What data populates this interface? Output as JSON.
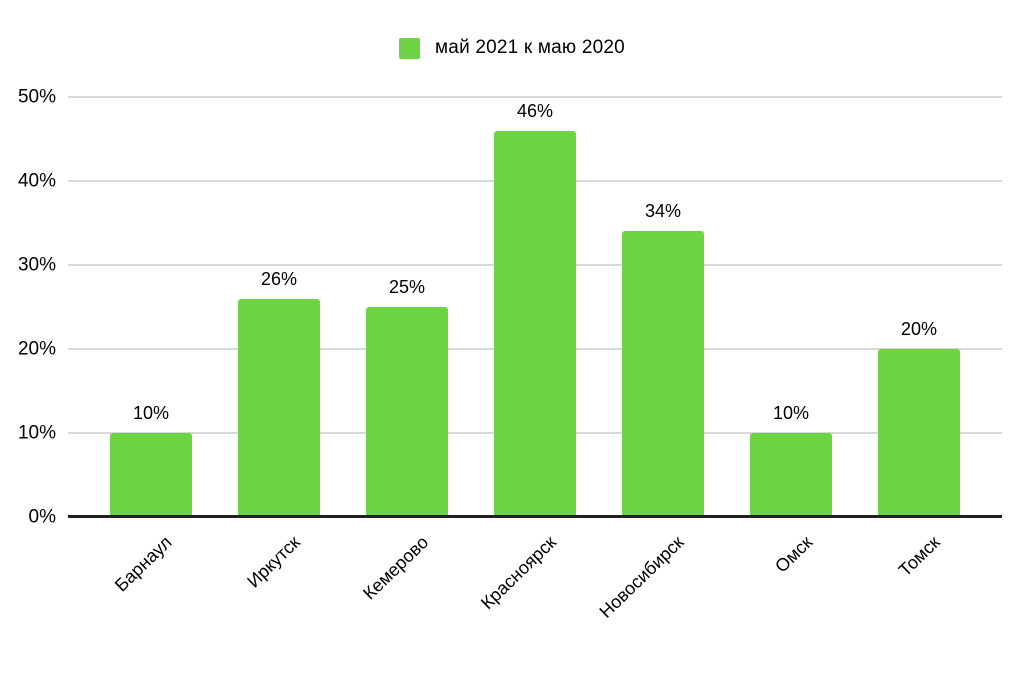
{
  "chart_data": {
    "type": "bar",
    "title": "",
    "xlabel": "",
    "ylabel": "",
    "categories": [
      "Барнаул",
      "Иркутск",
      "Кемерово",
      "Красноярск",
      "Новосибирск",
      "Омск",
      "Томск"
    ],
    "series": [
      {
        "name": "май 2021 к маю 2020",
        "color": "#6dd543",
        "values": [
          10,
          26,
          25,
          46,
          34,
          10,
          20
        ],
        "value_labels": [
          "10%",
          "26%",
          "25%",
          "46%",
          "34%",
          "10%",
          "20%"
        ]
      }
    ],
    "ylim": [
      0,
      50
    ],
    "y_tick_values": [
      0,
      10,
      20,
      30,
      40,
      50
    ],
    "y_tick_labels": [
      "0%",
      "10%",
      "20%",
      "30%",
      "40%",
      "50%"
    ],
    "grid": true,
    "legend_position": "top",
    "colors": {
      "bar": "#6dd543",
      "gridline": "#d9d9d9",
      "axis": "#212121",
      "text": "#000000",
      "background": "#ffffff"
    }
  }
}
